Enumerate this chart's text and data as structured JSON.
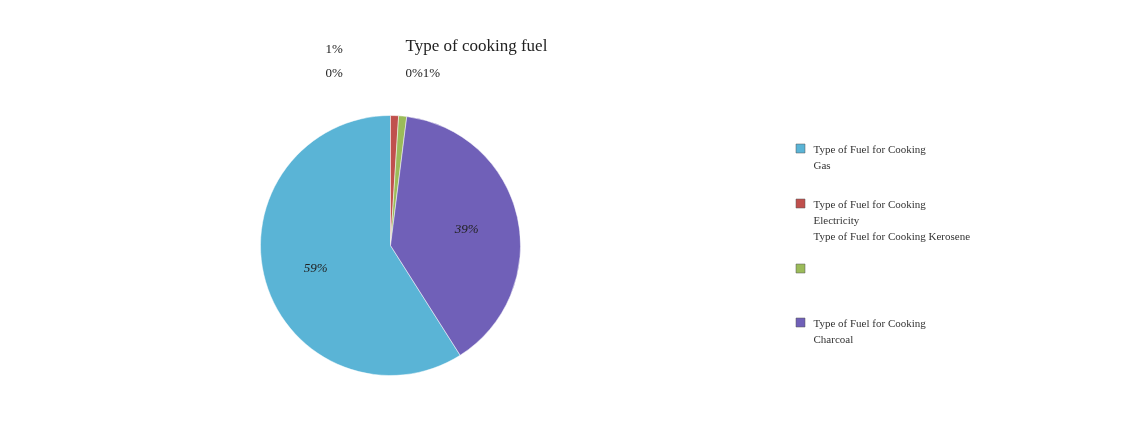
{
  "chart_data": {
    "type": "pie",
    "title": "Type of cooking fuel",
    "categories": [
      "Type of Fuel for Cooking\nGas",
      "Type of Fuel for Cooking\nElectricity\nType of Fuel for Cooking Kerosene",
      null,
      "Type of Fuel for Cooking\nCharcoal"
    ],
    "values": [
      59,
      1,
      1,
      39
    ],
    "colors": [
      "#5ab4d6",
      "#c0504d",
      "#9bbb59",
      "#7060b8"
    ],
    "value_labels": [
      "59%",
      null,
      null,
      "39%"
    ],
    "annotations": [
      "1%",
      "0%",
      "0%1%"
    ],
    "legend": "right"
  }
}
